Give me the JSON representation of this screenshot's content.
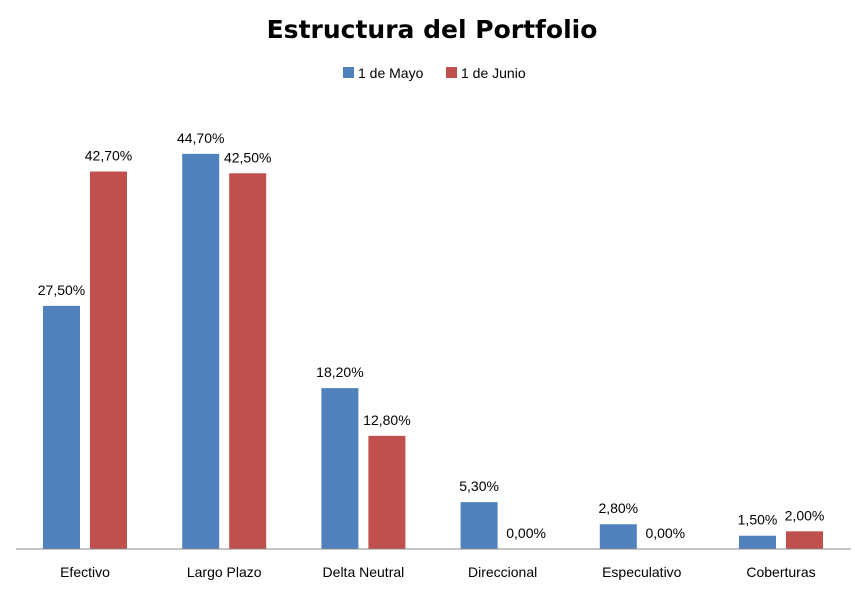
{
  "chart_data": {
    "type": "bar",
    "title": "Estructura del Portfolio",
    "categories": [
      "Efectivo",
      "Largo Plazo",
      "Delta Neutral",
      "Direccional",
      "Especulativo",
      "Coberturas"
    ],
    "series": [
      {
        "name": "1 de Mayo",
        "color": "#4F81BD",
        "values": [
          27.5,
          44.7,
          18.2,
          5.3,
          2.8,
          1.5
        ],
        "labels": [
          "27,50%",
          "44,70%",
          "18,20%",
          "5,30%",
          "2,80%",
          "1,50%"
        ]
      },
      {
        "name": "1 de Junio",
        "color": "#C0504D",
        "values": [
          42.7,
          42.5,
          12.8,
          0.0,
          0.0,
          2.0
        ],
        "labels": [
          "42,70%",
          "42,50%",
          "12,80%",
          "0,00%",
          "0,00%",
          "2,00%"
        ]
      }
    ],
    "ylim": [
      0,
      48
    ],
    "grid": false,
    "legend_position": "top-center",
    "axis_color": "#888888"
  }
}
